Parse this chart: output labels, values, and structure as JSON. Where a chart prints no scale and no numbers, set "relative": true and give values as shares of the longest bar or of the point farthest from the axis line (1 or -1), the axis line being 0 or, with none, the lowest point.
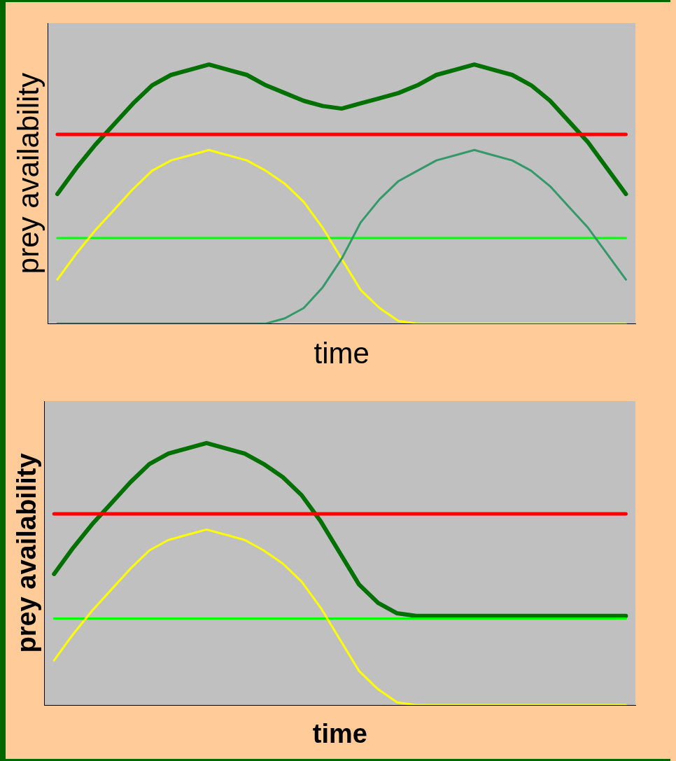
{
  "chart_data": [
    {
      "type": "line",
      "relative": true,
      "xlabel": "time",
      "ylabel": "prey availability",
      "grid": false,
      "legend": false,
      "marker": "none",
      "categories": [
        null,
        null,
        null,
        null,
        null,
        null,
        null,
        null,
        null,
        null,
        null,
        null,
        null,
        null,
        null,
        null,
        null,
        null,
        null,
        null,
        null,
        null,
        null,
        null,
        null,
        null,
        null,
        null,
        null,
        null,
        null
      ],
      "series": [
        {
          "color": "#33996a",
          "values": [
            0,
            0,
            0,
            0,
            0,
            0,
            0,
            0,
            0,
            0,
            0,
            0,
            0.02,
            0.06,
            0.14,
            0.25,
            0.39,
            0.48,
            0.55,
            0.59,
            0.63,
            0.65,
            0.67,
            0.65,
            0.63,
            0.59,
            0.53,
            0.45,
            0.37,
            0.27,
            0.17
          ]
        },
        {
          "color": "#ffff00",
          "values": [
            0.17,
            0.27,
            0.36,
            0.44,
            0.52,
            0.59,
            0.63,
            0.65,
            0.67,
            0.65,
            0.63,
            0.59,
            0.54,
            0.47,
            0.37,
            0.25,
            0.13,
            0.06,
            0.01,
            0,
            0,
            0,
            0,
            0,
            0,
            0,
            0,
            0,
            0,
            0,
            0
          ]
        },
        {
          "color": "#00ff00",
          "values": [
            0.33,
            0.33,
            0.33,
            0.33,
            0.33,
            0.33,
            0.33,
            0.33,
            0.33,
            0.33,
            0.33,
            0.33,
            0.33,
            0.33,
            0.33,
            0.33,
            0.33,
            0.33,
            0.33,
            0.33,
            0.33,
            0.33,
            0.33,
            0.33,
            0.33,
            0.33,
            0.33,
            0.33,
            0.33,
            0.33,
            0.33
          ]
        },
        {
          "color": "#ff0000",
          "values": [
            0.73,
            0.73,
            0.73,
            0.73,
            0.73,
            0.73,
            0.73,
            0.73,
            0.73,
            0.73,
            0.73,
            0.73,
            0.73,
            0.73,
            0.73,
            0.73,
            0.73,
            0.73,
            0.73,
            0.73,
            0.73,
            0.73,
            0.73,
            0.73,
            0.73,
            0.73,
            0.73,
            0.73,
            0.73,
            0.73,
            0.73
          ]
        },
        {
          "color": "#007000",
          "values": [
            0.5,
            0.6,
            0.69,
            0.77,
            0.85,
            0.92,
            0.96,
            0.98,
            1,
            0.98,
            0.96,
            0.92,
            0.89,
            0.86,
            0.84,
            0.83,
            0.85,
            0.87,
            0.89,
            0.92,
            0.96,
            0.98,
            1,
            0.98,
            0.96,
            0.92,
            0.86,
            0.78,
            0.7,
            0.6,
            0.5
          ]
        }
      ]
    },
    {
      "type": "line",
      "relative": true,
      "xlabel": "time",
      "ylabel": "prey availability",
      "grid": false,
      "legend": false,
      "marker": "none",
      "categories": [
        null,
        null,
        null,
        null,
        null,
        null,
        null,
        null,
        null,
        null,
        null,
        null,
        null,
        null,
        null,
        null,
        null,
        null,
        null,
        null,
        null,
        null,
        null,
        null,
        null,
        null,
        null,
        null,
        null,
        null,
        null
      ],
      "series": [
        {
          "color": "#ffff00",
          "values": [
            0.17,
            0.27,
            0.36,
            0.44,
            0.52,
            0.59,
            0.63,
            0.65,
            0.67,
            0.65,
            0.63,
            0.59,
            0.54,
            0.47,
            0.37,
            0.25,
            0.13,
            0.06,
            0.01,
            0,
            0,
            0,
            0,
            0,
            0,
            0,
            0,
            0,
            0,
            0,
            0
          ]
        },
        {
          "color": "#00ff00",
          "values": [
            0.33,
            0.33,
            0.33,
            0.33,
            0.33,
            0.33,
            0.33,
            0.33,
            0.33,
            0.33,
            0.33,
            0.33,
            0.33,
            0.33,
            0.33,
            0.33,
            0.33,
            0.33,
            0.33,
            0.33,
            0.33,
            0.33,
            0.33,
            0.33,
            0.33,
            0.33,
            0.33,
            0.33,
            0.33,
            0.33,
            0.33
          ]
        },
        {
          "color": "#ff0000",
          "values": [
            0.73,
            0.73,
            0.73,
            0.73,
            0.73,
            0.73,
            0.73,
            0.73,
            0.73,
            0.73,
            0.73,
            0.73,
            0.73,
            0.73,
            0.73,
            0.73,
            0.73,
            0.73,
            0.73,
            0.73,
            0.73,
            0.73,
            0.73,
            0.73,
            0.73,
            0.73,
            0.73,
            0.73,
            0.73,
            0.73,
            0.73
          ]
        },
        {
          "color": "#007000",
          "values": [
            0.5,
            0.6,
            0.69,
            0.77,
            0.85,
            0.92,
            0.96,
            0.98,
            1,
            0.98,
            0.96,
            0.92,
            0.87,
            0.8,
            0.7,
            0.58,
            0.46,
            0.39,
            0.35,
            0.34,
            0.34,
            0.34,
            0.34,
            0.34,
            0.34,
            0.34,
            0.34,
            0.34,
            0.34,
            0.34,
            0.34
          ]
        }
      ]
    }
  ]
}
